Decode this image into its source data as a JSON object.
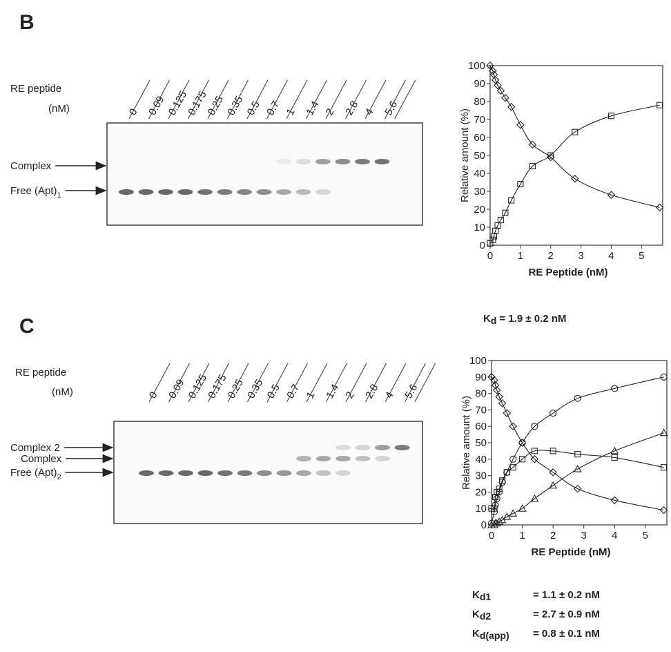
{
  "panels": [
    {
      "label": "B",
      "gel": {
        "axis_label": "RE peptide",
        "axis_unit": "(nM)",
        "lanes": [
          "0",
          "0.09",
          "0.125",
          "0.175",
          "0.25",
          "0.35",
          "0.5",
          "0.7",
          "1",
          "1.4",
          "2",
          "2.8",
          "4",
          "5.6"
        ],
        "bands": [
          {
            "text": "Complex"
          },
          {
            "text": "Free (Apt)",
            "subscript": "1"
          }
        ]
      },
      "kd": [
        {
          "symbol": "K",
          "subscript": "d",
          "value": "= 1.9 ± 0.2 nM"
        }
      ]
    },
    {
      "label": "C",
      "gel": {
        "axis_label": "RE peptide",
        "axis_unit": "(nM)",
        "lanes": [
          "0",
          "0.09",
          "0.125",
          "0.175",
          "0.25",
          "0.35",
          "0.5",
          "0.7",
          "1",
          "1.4",
          "2",
          "2.8",
          "4",
          "5.6"
        ],
        "bands": [
          {
            "text": "Complex 2"
          },
          {
            "text": "Complex"
          },
          {
            "text": "Free (Apt)",
            "subscript": "2"
          }
        ]
      },
      "kd": [
        {
          "symbol": "K",
          "subscript": "d1",
          "value": "= 1.1 ± 0.2 nM"
        },
        {
          "symbol": "K",
          "subscript": "d2",
          "value": "= 2.7 ± 0.9 nM"
        },
        {
          "symbol": "K",
          "subscript": "d(app)",
          "value": "= 0.8 ± 0.1 nM"
        }
      ]
    }
  ],
  "chart_data": [
    {
      "type": "scatter",
      "xlabel": "RE Peptide (nM)",
      "ylabel": "Relative amount (%)",
      "xlim": [
        0,
        5.7
      ],
      "ylim": [
        0,
        100
      ],
      "xticks": [
        0,
        1,
        2,
        3,
        4,
        5
      ],
      "yticks": [
        0,
        10,
        20,
        30,
        40,
        50,
        60,
        70,
        80,
        90,
        100
      ],
      "fit_curves": true,
      "x": [
        0,
        0.09,
        0.125,
        0.175,
        0.25,
        0.35,
        0.5,
        0.7,
        1,
        1.4,
        2,
        2.8,
        4,
        5.6
      ],
      "series": [
        {
          "marker": "diamond",
          "color": "#222222",
          "values": [
            100,
            97,
            95,
            92,
            89,
            86,
            82,
            77,
            67,
            56,
            49,
            37,
            28,
            21
          ]
        },
        {
          "marker": "square",
          "color": "#222222",
          "values": [
            1,
            3,
            5,
            8,
            11,
            14,
            18,
            25,
            34,
            44,
            50,
            63,
            72,
            78
          ]
        }
      ]
    },
    {
      "type": "scatter",
      "xlabel": "RE Peptide (nM)",
      "ylabel": "Relative amount (%)",
      "xlim": [
        0,
        5.7
      ],
      "ylim": [
        0,
        100
      ],
      "xticks": [
        0,
        1,
        2,
        3,
        4,
        5
      ],
      "yticks": [
        0,
        10,
        20,
        30,
        40,
        50,
        60,
        70,
        80,
        90,
        100
      ],
      "fit_curves": true,
      "x": [
        0,
        0.09,
        0.125,
        0.175,
        0.25,
        0.35,
        0.5,
        0.7,
        1,
        1.4,
        2,
        2.8,
        4,
        5.6
      ],
      "series": [
        {
          "marker": "diamond",
          "color": "#222222",
          "values": [
            90,
            88,
            85,
            82,
            78,
            74,
            68,
            60,
            50,
            40,
            32,
            22,
            15,
            9
          ]
        },
        {
          "marker": "circle",
          "color": "#222222",
          "values": [
            1,
            8,
            12,
            16,
            20,
            26,
            32,
            40,
            50,
            60,
            68,
            77,
            83,
            90
          ]
        },
        {
          "marker": "square",
          "color": "#222222",
          "values": [
            10,
            10,
            17,
            20,
            22,
            27,
            32,
            35,
            40,
            45,
            45,
            43,
            41,
            35
          ]
        },
        {
          "marker": "triangle",
          "color": "#222222",
          "values": [
            0,
            0,
            1,
            1,
            2,
            3,
            5,
            7,
            10,
            16,
            24,
            34,
            45,
            56
          ]
        }
      ]
    }
  ]
}
